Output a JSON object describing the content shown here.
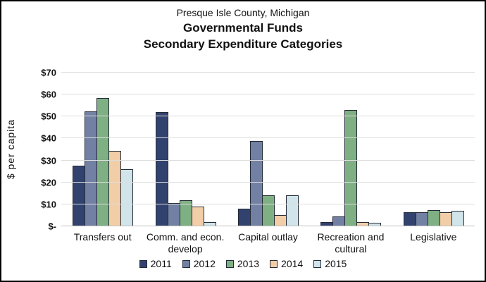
{
  "title": {
    "line1": "Presque Isle County, Michigan",
    "line2": "Governmental Funds",
    "line3": "Secondary Expenditure Categories"
  },
  "chart_data": {
    "type": "bar",
    "title": "Presque Isle County, Michigan — Governmental Funds — Secondary Expenditure Categories",
    "xlabel": "",
    "ylabel": "$ per capita",
    "ylim": [
      0,
      70
    ],
    "y_tick_step": 10,
    "y_ticks": [
      "$-",
      "$10",
      "$20",
      "$30",
      "$40",
      "$50",
      "$60",
      "$70"
    ],
    "grid": "horizontal",
    "legend_position": "bottom",
    "categories": [
      "Transfers out",
      "Comm. and econ.\ndevelop",
      "Capital outlay",
      "Recreation and\ncultural",
      "Legislative"
    ],
    "series": [
      {
        "name": "2011",
        "color": "#31426e",
        "values": [
          27.5,
          52,
          8,
          2,
          6.5
        ]
      },
      {
        "name": "2012",
        "color": "#7280a3",
        "values": [
          52.5,
          10.5,
          39,
          4.5,
          6.5
        ]
      },
      {
        "name": "2013",
        "color": "#7fb083",
        "values": [
          58.5,
          12,
          14,
          53,
          7.5
        ]
      },
      {
        "name": "2014",
        "color": "#f2cea8",
        "values": [
          34.5,
          9,
          5,
          2,
          6.5
        ]
      },
      {
        "name": "2015",
        "color": "#d0e4e9",
        "values": [
          26,
          2,
          14,
          1.5,
          7
        ]
      }
    ],
    "bar_border_color": "#242a36",
    "gridline_color": "#dddddd",
    "axis_line_color": "#bfbfbf"
  }
}
